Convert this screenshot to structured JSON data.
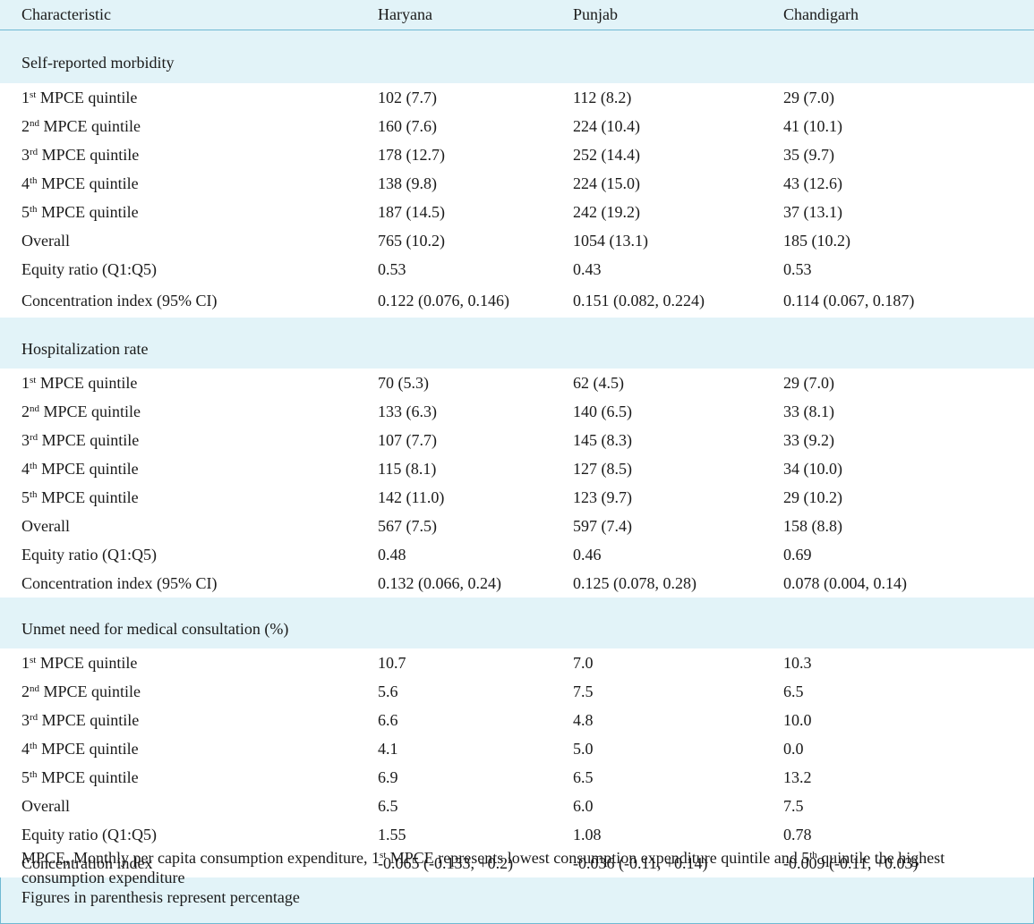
{
  "headers": [
    "Characteristic",
    "Haryana",
    "Punjab",
    "Chandigarh"
  ],
  "sections": [
    {
      "title": "Self-reported morbidity",
      "rows": [
        {
          "num": "1",
          "sup": "st",
          "label": " MPCE quintile",
          "values": [
            "102 (7.7)",
            "112 (8.2)",
            "29 (7.0)"
          ]
        },
        {
          "num": "2",
          "sup": "nd",
          "label": " MPCE quintile",
          "values": [
            "160 (7.6)",
            "224 (10.4)",
            "41 (10.1)"
          ]
        },
        {
          "num": "3",
          "sup": "rd",
          "label": " MPCE quintile",
          "values": [
            "178 (12.7)",
            "252 (14.4)",
            "35 (9.7)"
          ]
        },
        {
          "num": "4",
          "sup": "th",
          "label": " MPCE quintile",
          "values": [
            "138 (9.8)",
            "224 (15.0)",
            "43 (12.6)"
          ]
        },
        {
          "num": "5",
          "sup": "th",
          "label": " MPCE quintile",
          "values": [
            "187 (14.5)",
            "242 (19.2)",
            "37 (13.1)"
          ]
        },
        {
          "label": "Overall",
          "values": [
            "765 (10.2)",
            "1054 (13.1)",
            "185 (10.2)"
          ]
        },
        {
          "label": "Equity ratio (Q1:Q5)",
          "values": [
            "0.53",
            "0.43",
            "0.53"
          ]
        },
        {
          "label": "Concentration index (95% CI)",
          "values": [
            "0.122 (0.076, 0.146)",
            "0.151 (0.082, 0.224)",
            "0.114 (0.067, 0.187)"
          ]
        }
      ]
    },
    {
      "title": "Hospitalization rate",
      "rows": [
        {
          "num": "1",
          "sup": "st",
          "label": " MPCE quintile",
          "values": [
            "70 (5.3)",
            "62 (4.5)",
            "29 (7.0)"
          ]
        },
        {
          "num": "2",
          "sup": "nd",
          "label": " MPCE quintile",
          "values": [
            "133 (6.3)",
            "140 (6.5)",
            "33 (8.1)"
          ]
        },
        {
          "num": "3",
          "sup": "rd",
          "label": " MPCE quintile",
          "values": [
            "107 (7.7)",
            "145 (8.3)",
            "33 (9.2)"
          ]
        },
        {
          "num": "4",
          "sup": "th",
          "label": " MPCE quintile",
          "values": [
            "115 (8.1)",
            "127 (8.5)",
            "34 (10.0)"
          ]
        },
        {
          "num": "5",
          "sup": "th",
          "label": " MPCE quintile",
          "values": [
            "142 (11.0)",
            "123 (9.7)",
            "29 (10.2)"
          ]
        },
        {
          "label": "Overall",
          "values": [
            "567 (7.5)",
            "597 (7.4)",
            "158 (8.8)"
          ]
        },
        {
          "label": "Equity ratio (Q1:Q5)",
          "values": [
            "0.48",
            "0.46",
            "0.69"
          ]
        },
        {
          "label": "Concentration index (95% CI)",
          "values": [
            "0.132 (0.066, 0.24)",
            "0.125 (0.078, 0.28)",
            "0.078 (0.004, 0.14)"
          ]
        }
      ]
    },
    {
      "title": "Unmet need for medical consultation (%)",
      "rows": [
        {
          "num": "1",
          "sup": "st",
          "label": " MPCE quintile",
          "values": [
            "10.7",
            "7.0",
            "10.3"
          ]
        },
        {
          "num": "2",
          "sup": "nd",
          "label": " MPCE quintile",
          "values": [
            "5.6",
            "7.5",
            "6.5"
          ]
        },
        {
          "num": "3",
          "sup": "rd",
          "label": " MPCE quintile",
          "values": [
            "6.6",
            "4.8",
            "10.0"
          ]
        },
        {
          "num": "4",
          "sup": "th",
          "label": " MPCE quintile",
          "values": [
            "4.1",
            "5.0",
            "0.0"
          ]
        },
        {
          "num": "5",
          "sup": "th",
          "label": " MPCE quintile",
          "values": [
            "6.9",
            "6.5",
            "13.2"
          ]
        },
        {
          "label": "Overall",
          "values": [
            "6.5",
            "6.0",
            "7.5"
          ]
        },
        {
          "label": "Equity ratio (Q1:Q5)",
          "values": [
            "1.55",
            "1.08",
            "0.78"
          ]
        },
        {
          "label": "Concentration index",
          "values": [
            "-0.065 (-0.133, +0.2)",
            "-0.036 (-0.11, +0.14)",
            "-0.009 (-0.11, +0.03)"
          ]
        }
      ]
    }
  ],
  "footnotes": {
    "line1_pre": "MPCE, Monthly per capita consumption expenditure, 1",
    "line1_sup1": "st",
    "line1_mid": " MPCE represents lowest consumption expenditure quintile and 5",
    "line1_sup2": "th",
    "line1_post": " quintile the highest consumption expenditure",
    "line2": "Figures in parenthesis represent percentage"
  },
  "colors": {
    "border": "#6fb9d3",
    "band": "#e2f3f8",
    "row": "#ffffff"
  }
}
